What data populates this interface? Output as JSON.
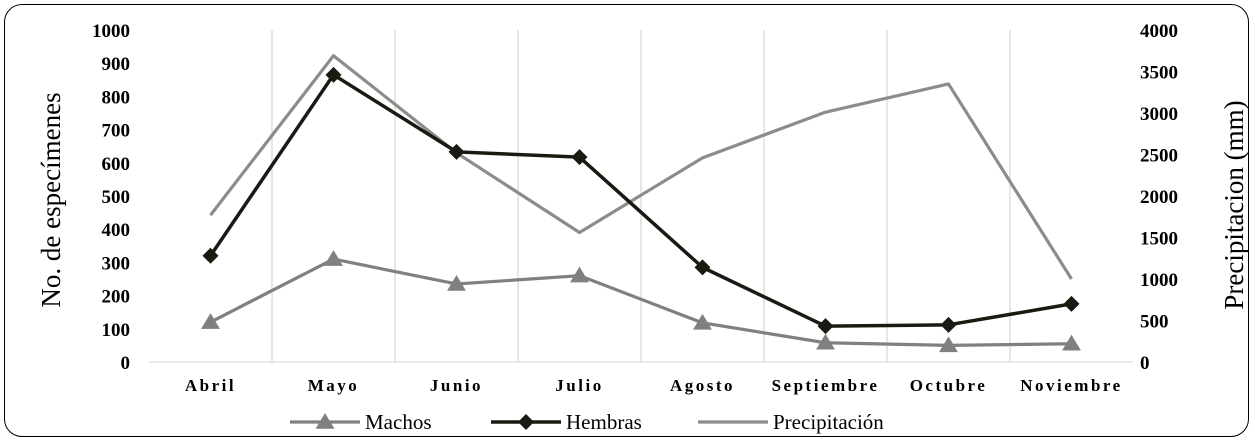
{
  "chart_data": {
    "type": "line",
    "categories": [
      "Abril",
      "Mayo",
      "Junio",
      "Julio",
      "Agosto",
      "Septiembre",
      "Octubre",
      "Noviembre"
    ],
    "ylabel": "No. de especímenes",
    "y2label": "Precipitacion (mm)",
    "ylim": [
      0,
      1000
    ],
    "y2lim": [
      0,
      4000
    ],
    "yticks": [
      "0",
      "100",
      "200",
      "300",
      "400",
      "500",
      "600",
      "700",
      "800",
      "900",
      "1000"
    ],
    "y2ticks": [
      "0",
      "500",
      "1000",
      "1500",
      "2000",
      "2500",
      "3000",
      "3500",
      "4000"
    ],
    "grid": "vertical",
    "legend_position": "bottom",
    "series": [
      {
        "name": "Machos",
        "axis": "left",
        "color": "#808080",
        "marker": "triangle",
        "values": [
          120,
          310,
          235,
          260,
          118,
          58,
          50,
          55
        ]
      },
      {
        "name": "Hembras",
        "axis": "left",
        "color": "#1a1a12",
        "marker": "diamond",
        "values": [
          320,
          865,
          633,
          617,
          285,
          108,
          112,
          175
        ]
      },
      {
        "name": "Precipitación",
        "axis": "right",
        "color": "#8c8c8c",
        "marker": "none",
        "values": [
          1770,
          3690,
          2520,
          1560,
          2460,
          3010,
          3350,
          1000
        ]
      }
    ]
  }
}
